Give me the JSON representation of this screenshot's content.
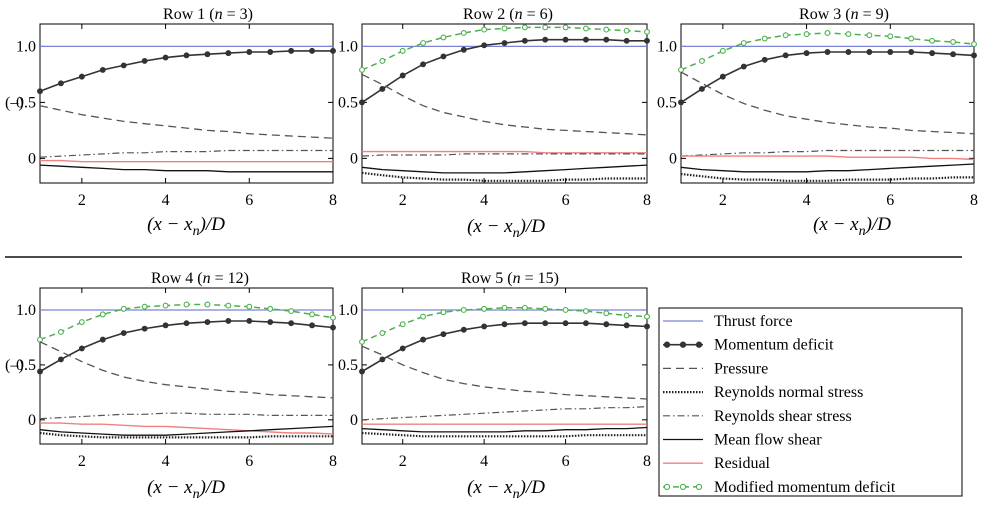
{
  "chart_data": [
    {
      "type": "line",
      "title": "Row 1 (n = 3)",
      "title_row": "Row 1 (",
      "title_n": "n",
      "title_eq": " = 3)",
      "xlabel_parts": [
        "(x − x",
        "n",
        ")/D"
      ],
      "ylabel": "(–)",
      "xticks": [
        "2",
        "4",
        "6",
        "8"
      ],
      "yticks": [
        "0",
        "0.5",
        "1.0"
      ],
      "xlim": [
        1,
        8
      ],
      "ylim": [
        -0.22,
        1.2
      ],
      "x": [
        1,
        1.5,
        2,
        2.5,
        3,
        3.5,
        4,
        4.5,
        5,
        5.5,
        6,
        6.5,
        7,
        7.5,
        8
      ],
      "series": [
        {
          "name": "Thrust force",
          "values": [
            1,
            1,
            1,
            1,
            1,
            1,
            1,
            1,
            1,
            1,
            1,
            1,
            1,
            1,
            1
          ]
        },
        {
          "name": "Momentum deficit",
          "values": [
            0.6,
            0.67,
            0.73,
            0.79,
            0.83,
            0.87,
            0.9,
            0.92,
            0.93,
            0.94,
            0.95,
            0.95,
            0.96,
            0.96,
            0.96
          ]
        },
        {
          "name": "Pressure",
          "values": [
            0.47,
            0.43,
            0.39,
            0.36,
            0.33,
            0.31,
            0.29,
            0.27,
            0.25,
            0.24,
            0.22,
            0.21,
            0.2,
            0.19,
            0.18
          ]
        },
        {
          "name": "Reynolds shear stress",
          "values": [
            0.01,
            0.02,
            0.03,
            0.04,
            0.05,
            0.05,
            0.06,
            0.06,
            0.06,
            0.07,
            0.07,
            0.07,
            0.07,
            0.07,
            0.07
          ]
        },
        {
          "name": "Residual",
          "values": [
            -0.02,
            -0.02,
            -0.03,
            -0.03,
            -0.03,
            -0.03,
            -0.03,
            -0.03,
            -0.03,
            -0.03,
            -0.03,
            -0.03,
            -0.03,
            -0.03,
            -0.03
          ]
        },
        {
          "name": "Mean flow shear",
          "values": [
            -0.06,
            -0.07,
            -0.08,
            -0.09,
            -0.1,
            -0.1,
            -0.11,
            -0.11,
            -0.11,
            -0.12,
            -0.12,
            -0.12,
            -0.12,
            -0.12,
            -0.12
          ]
        }
      ]
    },
    {
      "type": "line",
      "title": "Row 2 (n = 6)",
      "title_row": "Row 2 (",
      "title_n": "n",
      "title_eq": " = 6)",
      "xlabel_parts": [
        "(x − x",
        "n",
        ")/D"
      ],
      "ylabel": "",
      "xticks": [
        "2",
        "4",
        "6",
        "8"
      ],
      "yticks": [
        "0",
        "0.5",
        "1.0"
      ],
      "xlim": [
        1,
        8
      ],
      "ylim": [
        -0.22,
        1.2
      ],
      "x": [
        1,
        1.5,
        2,
        2.5,
        3,
        3.5,
        4,
        4.5,
        5,
        5.5,
        6,
        6.5,
        7,
        7.5,
        8
      ],
      "series": [
        {
          "name": "Thrust force",
          "values": [
            1,
            1,
            1,
            1,
            1,
            1,
            1,
            1,
            1,
            1,
            1,
            1,
            1,
            1,
            1
          ]
        },
        {
          "name": "Momentum deficit",
          "values": [
            0.5,
            0.62,
            0.74,
            0.84,
            0.91,
            0.97,
            1.01,
            1.03,
            1.05,
            1.06,
            1.06,
            1.06,
            1.06,
            1.05,
            1.05
          ]
        },
        {
          "name": "Modified momentum deficit",
          "values": [
            0.79,
            0.87,
            0.96,
            1.03,
            1.08,
            1.12,
            1.15,
            1.16,
            1.17,
            1.17,
            1.17,
            1.16,
            1.15,
            1.14,
            1.13
          ]
        },
        {
          "name": "Pressure",
          "values": [
            0.75,
            0.66,
            0.56,
            0.47,
            0.41,
            0.37,
            0.33,
            0.3,
            0.28,
            0.26,
            0.25,
            0.24,
            0.23,
            0.22,
            0.21
          ]
        },
        {
          "name": "Residual",
          "values": [
            0.06,
            0.06,
            0.06,
            0.06,
            0.06,
            0.06,
            0.06,
            0.06,
            0.06,
            0.05,
            0.05,
            0.05,
            0.05,
            0.05,
            0.05
          ]
        },
        {
          "name": "Reynolds shear stress",
          "values": [
            0.02,
            0.03,
            0.03,
            0.03,
            0.03,
            0.04,
            0.04,
            0.04,
            0.04,
            0.04,
            0.04,
            0.04,
            0.04,
            0.04,
            0.04
          ]
        },
        {
          "name": "Mean flow shear",
          "values": [
            -0.08,
            -0.1,
            -0.11,
            -0.12,
            -0.13,
            -0.13,
            -0.13,
            -0.13,
            -0.12,
            -0.11,
            -0.1,
            -0.09,
            -0.08,
            -0.07,
            -0.06
          ]
        },
        {
          "name": "Reynolds normal stress",
          "values": [
            -0.13,
            -0.15,
            -0.17,
            -0.18,
            -0.19,
            -0.19,
            -0.2,
            -0.2,
            -0.2,
            -0.2,
            -0.19,
            -0.19,
            -0.18,
            -0.18,
            -0.18
          ]
        }
      ]
    },
    {
      "type": "line",
      "title": "Row 3 (n = 9)",
      "title_row": "Row 3 (",
      "title_n": "n",
      "title_eq": " = 9)",
      "xlabel_parts": [
        "(x − x",
        "n",
        ")/D"
      ],
      "ylabel": "",
      "xticks": [
        "2",
        "4",
        "6",
        "8"
      ],
      "yticks": [
        "0",
        "0.5",
        "1.0"
      ],
      "xlim": [
        1,
        8
      ],
      "ylim": [
        -0.22,
        1.2
      ],
      "x": [
        1,
        1.5,
        2,
        2.5,
        3,
        3.5,
        4,
        4.5,
        5,
        5.5,
        6,
        6.5,
        7,
        7.5,
        8
      ],
      "series": [
        {
          "name": "Thrust force",
          "values": [
            1,
            1,
            1,
            1,
            1,
            1,
            1,
            1,
            1,
            1,
            1,
            1,
            1,
            1,
            1
          ]
        },
        {
          "name": "Momentum deficit",
          "values": [
            0.5,
            0.62,
            0.73,
            0.82,
            0.88,
            0.92,
            0.94,
            0.95,
            0.95,
            0.95,
            0.95,
            0.95,
            0.94,
            0.93,
            0.92
          ]
        },
        {
          "name": "Modified momentum deficit",
          "values": [
            0.79,
            0.87,
            0.96,
            1.03,
            1.07,
            1.1,
            1.11,
            1.12,
            1.11,
            1.1,
            1.09,
            1.07,
            1.05,
            1.04,
            1.02
          ]
        },
        {
          "name": "Pressure",
          "values": [
            0.77,
            0.67,
            0.57,
            0.49,
            0.43,
            0.38,
            0.35,
            0.32,
            0.3,
            0.28,
            0.27,
            0.25,
            0.24,
            0.23,
            0.22
          ]
        },
        {
          "name": "Reynolds shear stress",
          "values": [
            0.02,
            0.03,
            0.04,
            0.05,
            0.05,
            0.06,
            0.06,
            0.07,
            0.07,
            0.07,
            0.07,
            0.07,
            0.07,
            0.07,
            0.07
          ]
        },
        {
          "name": "Residual",
          "values": [
            0.02,
            0.02,
            0.02,
            0.02,
            0.02,
            0.02,
            0.02,
            0.02,
            0.01,
            0.01,
            0.01,
            0.01,
            0,
            0,
            -0.01
          ]
        },
        {
          "name": "Mean flow shear",
          "values": [
            -0.08,
            -0.1,
            -0.11,
            -0.12,
            -0.12,
            -0.12,
            -0.12,
            -0.11,
            -0.11,
            -0.1,
            -0.09,
            -0.08,
            -0.07,
            -0.06,
            -0.05
          ]
        },
        {
          "name": "Reynolds normal stress",
          "values": [
            -0.14,
            -0.16,
            -0.18,
            -0.19,
            -0.19,
            -0.2,
            -0.2,
            -0.2,
            -0.19,
            -0.19,
            -0.19,
            -0.18,
            -0.18,
            -0.17,
            -0.17
          ]
        }
      ]
    },
    {
      "type": "line",
      "title": "Row 4 (n = 12)",
      "title_row": "Row 4 (",
      "title_n": "n",
      "title_eq": " = 12)",
      "xlabel_parts": [
        "(x − x",
        "n",
        ")/D"
      ],
      "ylabel": "(–)",
      "xticks": [
        "2",
        "4",
        "6",
        "8"
      ],
      "yticks": [
        "0",
        "0.5",
        "1.0"
      ],
      "xlim": [
        1,
        8
      ],
      "ylim": [
        -0.22,
        1.2
      ],
      "x": [
        1,
        1.5,
        2,
        2.5,
        3,
        3.5,
        4,
        4.5,
        5,
        5.5,
        6,
        6.5,
        7,
        7.5,
        8
      ],
      "series": [
        {
          "name": "Thrust force",
          "values": [
            1,
            1,
            1,
            1,
            1,
            1,
            1,
            1,
            1,
            1,
            1,
            1,
            1,
            1,
            1
          ]
        },
        {
          "name": "Momentum deficit",
          "values": [
            0.44,
            0.55,
            0.65,
            0.73,
            0.79,
            0.83,
            0.86,
            0.88,
            0.89,
            0.9,
            0.9,
            0.89,
            0.88,
            0.86,
            0.84
          ]
        },
        {
          "name": "Modified momentum deficit",
          "values": [
            0.73,
            0.8,
            0.89,
            0.96,
            1.01,
            1.03,
            1.04,
            1.05,
            1.05,
            1.04,
            1.03,
            1.01,
            0.99,
            0.96,
            0.93
          ]
        },
        {
          "name": "Pressure",
          "values": [
            0.71,
            0.62,
            0.53,
            0.45,
            0.39,
            0.35,
            0.32,
            0.3,
            0.28,
            0.26,
            0.25,
            0.23,
            0.22,
            0.21,
            0.2
          ]
        },
        {
          "name": "Reynolds shear stress",
          "values": [
            0.01,
            0.02,
            0.03,
            0.04,
            0.05,
            0.05,
            0.06,
            0.06,
            0.05,
            0.05,
            0.05,
            0.04,
            0.04,
            0.04,
            0.04
          ]
        },
        {
          "name": "Residual",
          "values": [
            -0.03,
            -0.03,
            -0.04,
            -0.04,
            -0.05,
            -0.06,
            -0.06,
            -0.07,
            -0.08,
            -0.09,
            -0.1,
            -0.11,
            -0.12,
            -0.12,
            -0.13
          ]
        },
        {
          "name": "Mean flow shear",
          "values": [
            -0.09,
            -0.11,
            -0.12,
            -0.13,
            -0.14,
            -0.14,
            -0.14,
            -0.13,
            -0.12,
            -0.11,
            -0.1,
            -0.09,
            -0.08,
            -0.07,
            -0.06
          ]
        },
        {
          "name": "Reynolds normal stress",
          "values": [
            -0.12,
            -0.14,
            -0.15,
            -0.16,
            -0.16,
            -0.16,
            -0.16,
            -0.16,
            -0.16,
            -0.16,
            -0.16,
            -0.15,
            -0.15,
            -0.15,
            -0.15
          ]
        }
      ]
    },
    {
      "type": "line",
      "title": "Row 5 (n = 15)",
      "title_row": "Row 5 (",
      "title_n": "n",
      "title_eq": " = 15)",
      "xlabel_parts": [
        "(x − x",
        "n",
        ")/D"
      ],
      "ylabel": "",
      "xticks": [
        "2",
        "4",
        "6",
        "8"
      ],
      "yticks": [
        "0",
        "0.5",
        "1.0"
      ],
      "xlim": [
        1,
        8
      ],
      "ylim": [
        -0.22,
        1.2
      ],
      "x": [
        1,
        1.5,
        2,
        2.5,
        3,
        3.5,
        4,
        4.5,
        5,
        5.5,
        6,
        6.5,
        7,
        7.5,
        8
      ],
      "series": [
        {
          "name": "Thrust force",
          "values": [
            1,
            1,
            1,
            1,
            1,
            1,
            1,
            1,
            1,
            1,
            1,
            1,
            1,
            1,
            1
          ]
        },
        {
          "name": "Momentum deficit",
          "values": [
            0.44,
            0.55,
            0.65,
            0.73,
            0.78,
            0.82,
            0.85,
            0.87,
            0.88,
            0.88,
            0.88,
            0.88,
            0.87,
            0.86,
            0.85
          ]
        },
        {
          "name": "Modified momentum deficit",
          "values": [
            0.71,
            0.79,
            0.87,
            0.94,
            0.98,
            1.0,
            1.01,
            1.02,
            1.02,
            1.01,
            1.0,
            0.99,
            0.97,
            0.95,
            0.94
          ]
        },
        {
          "name": "Pressure",
          "values": [
            0.67,
            0.59,
            0.5,
            0.43,
            0.37,
            0.33,
            0.3,
            0.28,
            0.26,
            0.25,
            0.23,
            0.22,
            0.21,
            0.2,
            0.19
          ]
        },
        {
          "name": "Reynolds shear stress",
          "values": [
            0,
            0.01,
            0.02,
            0.03,
            0.04,
            0.05,
            0.06,
            0.07,
            0.08,
            0.09,
            0.1,
            0.1,
            0.11,
            0.11,
            0.12
          ]
        },
        {
          "name": "Residual",
          "values": [
            -0.04,
            -0.04,
            -0.04,
            -0.04,
            -0.04,
            -0.04,
            -0.04,
            -0.04,
            -0.04,
            -0.04,
            -0.04,
            -0.04,
            -0.04,
            -0.04,
            -0.04
          ]
        },
        {
          "name": "Mean flow shear",
          "values": [
            -0.08,
            -0.09,
            -0.1,
            -0.11,
            -0.11,
            -0.11,
            -0.11,
            -0.11,
            -0.1,
            -0.1,
            -0.09,
            -0.09,
            -0.08,
            -0.08,
            -0.07
          ]
        },
        {
          "name": "Reynolds normal stress",
          "values": [
            -0.12,
            -0.13,
            -0.14,
            -0.15,
            -0.15,
            -0.15,
            -0.15,
            -0.15,
            -0.15,
            -0.15,
            -0.15,
            -0.14,
            -0.14,
            -0.14,
            -0.14
          ]
        }
      ]
    }
  ],
  "legend": {
    "placement": "bottom-right",
    "entries": [
      {
        "name": "Thrust force",
        "color": "#7b83d6",
        "style": "solid"
      },
      {
        "name": "Momentum deficit",
        "color": "#333333",
        "style": "solid-dot"
      },
      {
        "name": "Pressure",
        "color": "#555555",
        "style": "dashed"
      },
      {
        "name": "Reynolds normal stress",
        "color": "#222222",
        "style": "dotted"
      },
      {
        "name": "Reynolds shear stress",
        "color": "#555555",
        "style": "dashdot"
      },
      {
        "name": "Mean flow shear",
        "color": "#111111",
        "style": "solid"
      },
      {
        "name": "Residual",
        "color": "#f08080",
        "style": "solid"
      },
      {
        "name": "Modified momentum deficit",
        "color": "#4caf50",
        "style": "dashed-dot"
      }
    ]
  }
}
